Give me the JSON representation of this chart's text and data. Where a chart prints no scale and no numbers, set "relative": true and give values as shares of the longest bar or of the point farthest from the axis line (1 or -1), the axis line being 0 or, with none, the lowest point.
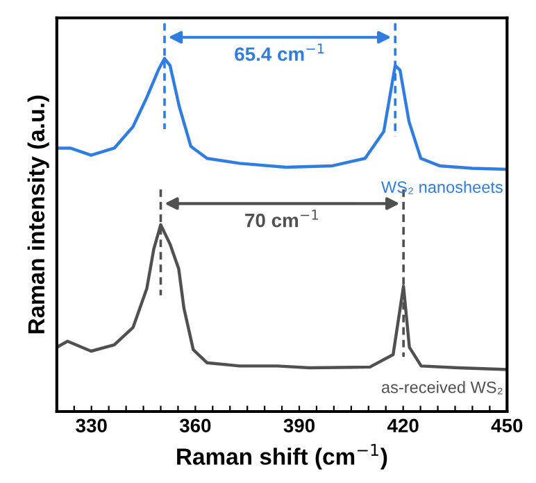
{
  "chart_data": {
    "type": "line",
    "relative": true,
    "xlabel": "Raman shift (cm$^{−1}$)",
    "ylabel": "Raman intensity (a.u.)",
    "xlim": [
      320,
      450
    ],
    "xticks": [
      {
        "value": 325,
        "label": null
      },
      330,
      {
        "value": 335,
        "label": null
      },
      {
        "value": 340,
        "label": null
      },
      {
        "value": 345,
        "label": null
      },
      {
        "value": 350,
        "label": null
      },
      {
        "value": 355,
        "label": null
      },
      360,
      {
        "value": 365,
        "label": null
      },
      {
        "value": 370,
        "label": null
      },
      {
        "value": 375,
        "label": null
      },
      {
        "value": 380,
        "label": null
      },
      {
        "value": 385,
        "label": null
      },
      390,
      {
        "value": 395,
        "label": null
      },
      {
        "value": 400,
        "label": null
      },
      {
        "value": 405,
        "label": null
      },
      {
        "value": 410,
        "label": null
      },
      {
        "value": 415,
        "label": null
      },
      420,
      {
        "value": 425,
        "label": null
      },
      {
        "value": 430,
        "label": null
      },
      {
        "value": 435,
        "label": null
      },
      {
        "value": 440,
        "label": null
      },
      {
        "value": 445,
        "label": null
      },
      450
    ],
    "tick_labels": "x",
    "grid": false,
    "legend": false,
    "series": [
      {
        "name": "WS₂ nanosheets",
        "color": "#2f7de1",
        "x": [
          320,
          323.9,
          329.9,
          336.6,
          342,
          346,
          349.3,
          351.1,
          352.7,
          355.4,
          358.7,
          363.4,
          372.8,
          386.2,
          399.6,
          409,
          414.4,
          417.7,
          419.1,
          421.7,
          425.1,
          430.5,
          439.9,
          450
        ],
        "values": [
          0.746,
          0.746,
          0.726,
          0.746,
          0.807,
          0.89,
          0.967,
          1.0,
          0.98,
          0.862,
          0.751,
          0.717,
          0.703,
          0.692,
          0.696,
          0.717,
          0.793,
          0.98,
          0.967,
          0.821,
          0.717,
          0.696,
          0.689,
          0.686
        ]
      },
      {
        "name": "as-received WS₂",
        "color": "#505050",
        "x": [
          320,
          323.1,
          329.9,
          336.6,
          342,
          346,
          348,
          350,
          352.7,
          355.2,
          356.7,
          359.4,
          363.4,
          372.8,
          383.6,
          393,
          410.4,
          417.1,
          420.1,
          421.8,
          425.2,
          435.9,
          450
        ],
        "values": [
          0.182,
          0.199,
          0.171,
          0.189,
          0.238,
          0.349,
          0.46,
          0.529,
          0.474,
          0.404,
          0.293,
          0.175,
          0.138,
          0.129,
          0.129,
          0.124,
          0.126,
          0.161,
          0.355,
          0.182,
          0.129,
          0.124,
          0.119
        ]
      }
    ],
    "annotations": [
      "65.4 cm$^{−1}$",
      "70 cm$^{−1}$"
    ]
  }
}
